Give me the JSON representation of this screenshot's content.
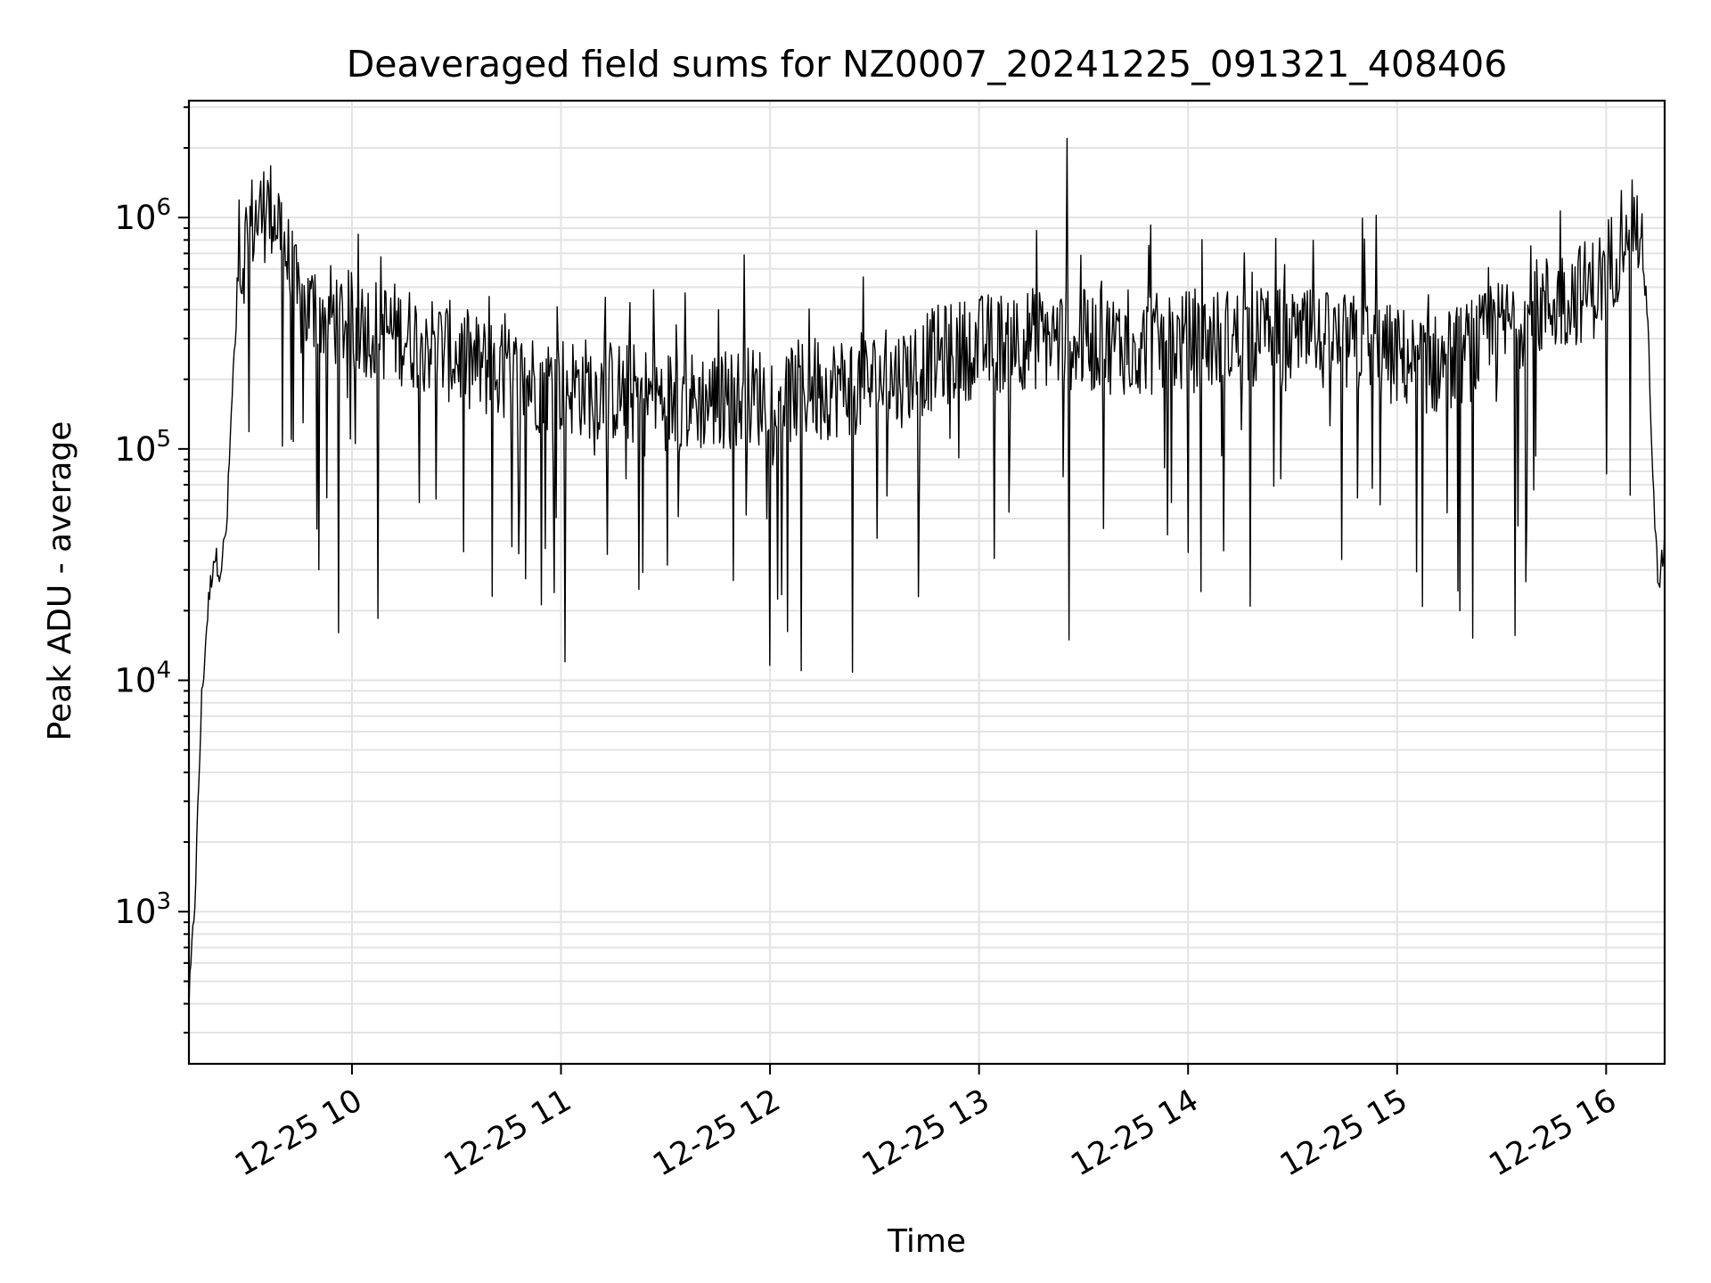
{
  "chart_data": {
    "type": "line",
    "title": "Deaveraged field sums for NZ0007_20241225_091321_408406",
    "xlabel": "Time",
    "ylabel": "Peak ADU - average",
    "x_tick_labels": [
      "12-25 10",
      "12-25 11",
      "12-25 12",
      "12-25 13",
      "12-25 14",
      "12-25 15",
      "12-25 16"
    ],
    "x_tick_hours": [
      10,
      11,
      12,
      13,
      14,
      15,
      16
    ],
    "xlim_hours": [
      9.22,
      16.28
    ],
    "y_scale": "log",
    "ylim": [
      220,
      3200000
    ],
    "y_ticks": [
      {
        "value": 1000,
        "base": "10",
        "exp": "3"
      },
      {
        "value": 10000,
        "base": "10",
        "exp": "4"
      },
      {
        "value": 100000,
        "base": "10",
        "exp": "5"
      },
      {
        "value": 1000000,
        "base": "10",
        "exp": "6"
      }
    ],
    "grid": true,
    "line_color": "#000000",
    "grid_color": "#e3e3e3",
    "series": [
      {
        "x_hours": [
          9.22,
          9.25,
          9.28,
          9.31,
          9.34,
          9.37,
          9.4,
          9.43,
          9.46,
          9.5,
          9.55,
          9.6,
          9.65,
          9.7,
          9.75,
          9.8,
          9.9,
          10.0,
          10.2,
          10.4,
          10.6,
          10.8,
          11.0,
          11.2,
          11.4,
          11.6,
          11.8,
          12.0,
          12.2,
          12.4,
          12.6,
          12.8,
          13.0,
          13.2,
          13.4,
          13.6,
          13.8,
          14.0,
          14.2,
          14.4,
          14.6,
          14.8,
          15.0,
          15.2,
          15.4,
          15.6,
          15.8,
          15.95,
          16.05,
          16.1,
          16.15,
          16.2,
          16.22,
          16.25,
          16.28
        ],
        "y": [
          400,
          1200,
          8000,
          20000,
          35000,
          30000,
          45000,
          200000,
          500000,
          900000,
          1000000,
          1100000,
          1000000,
          600000,
          400000,
          400000,
          380000,
          350000,
          320000,
          280000,
          230000,
          200000,
          190000,
          180000,
          170000,
          160000,
          165000,
          170000,
          180000,
          190000,
          200000,
          250000,
          280000,
          300000,
          300000,
          290000,
          280000,
          290000,
          300000,
          300000,
          290000,
          280000,
          250000,
          230000,
          280000,
          380000,
          450000,
          500000,
          700000,
          1100000,
          900000,
          400000,
          80000,
          25000,
          40000
        ],
        "noise": "high-frequency fluctuations of roughly ±0.3–1.0 decades around this envelope, with occasional upward spikes near 1.3e6–2.2e6 and downward spikes to 1.1e4–8e4"
      }
    ]
  }
}
